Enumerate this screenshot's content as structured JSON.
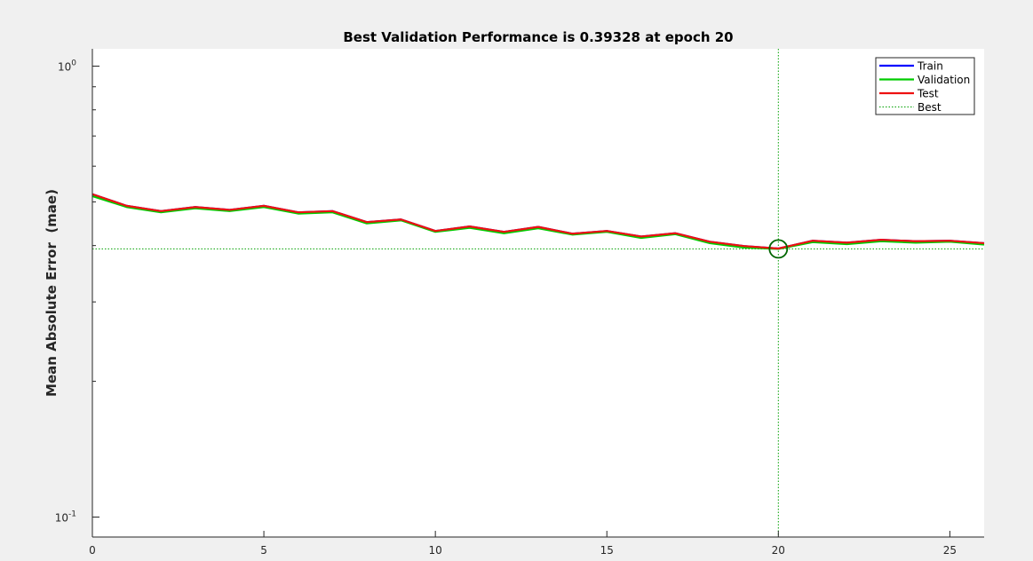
{
  "chart_data": {
    "type": "line",
    "title": "Best Validation Performance is 0.39328 at epoch 20",
    "xlabel": "",
    "ylabel": "Mean Absolute Error  (mae)",
    "xlim": [
      0,
      26
    ],
    "ylim": [
      0.1,
      1.0
    ],
    "yscale": "log",
    "xticks": [
      0,
      5,
      10,
      15,
      20,
      25
    ],
    "xtick_labels": [
      "0",
      "5",
      "10",
      "15",
      "20",
      "25"
    ],
    "yticks": [
      0.1,
      1.0
    ],
    "ytick_labels": [
      {
        "base": "10",
        "exp": "-1"
      },
      {
        "base": "10",
        "exp": "0"
      }
    ],
    "x": [
      0,
      1,
      2,
      3,
      4,
      5,
      6,
      7,
      8,
      9,
      10,
      11,
      12,
      13,
      14,
      15,
      16,
      17,
      18,
      19,
      20,
      21,
      22,
      23,
      24,
      25,
      26
    ],
    "series": [
      {
        "name": "Train",
        "color": "#0000ff",
        "values": [
          0.52,
          0.49,
          0.477,
          0.487,
          0.48,
          0.49,
          0.474,
          0.477,
          0.451,
          0.457,
          0.431,
          0.441,
          0.429,
          0.44,
          0.425,
          0.431,
          0.419,
          0.426,
          0.408,
          0.399,
          0.394,
          0.41,
          0.406,
          0.412,
          0.409,
          0.41,
          0.405
        ]
      },
      {
        "name": "Validation",
        "color": "#00cc00",
        "values": [
          0.515,
          0.487,
          0.474,
          0.484,
          0.477,
          0.487,
          0.471,
          0.474,
          0.448,
          0.455,
          0.429,
          0.438,
          0.426,
          0.437,
          0.423,
          0.429,
          0.416,
          0.424,
          0.405,
          0.396,
          0.39328,
          0.407,
          0.403,
          0.409,
          0.406,
          0.408,
          0.402
        ]
      },
      {
        "name": "Test",
        "color": "#ee1111",
        "values": [
          0.52,
          0.49,
          0.477,
          0.487,
          0.48,
          0.49,
          0.474,
          0.477,
          0.451,
          0.457,
          0.431,
          0.441,
          0.429,
          0.44,
          0.425,
          0.431,
          0.419,
          0.426,
          0.408,
          0.399,
          0.394,
          0.41,
          0.406,
          0.412,
          0.409,
          0.41,
          0.405
        ]
      }
    ],
    "best": {
      "name": "Best",
      "epoch": 20,
      "value": 0.39328,
      "color": "#00a000",
      "marker_color": "#006600"
    },
    "legend": {
      "position": "top-right",
      "entries": [
        "Train",
        "Validation",
        "Test",
        "Best"
      ]
    },
    "grid": false
  }
}
